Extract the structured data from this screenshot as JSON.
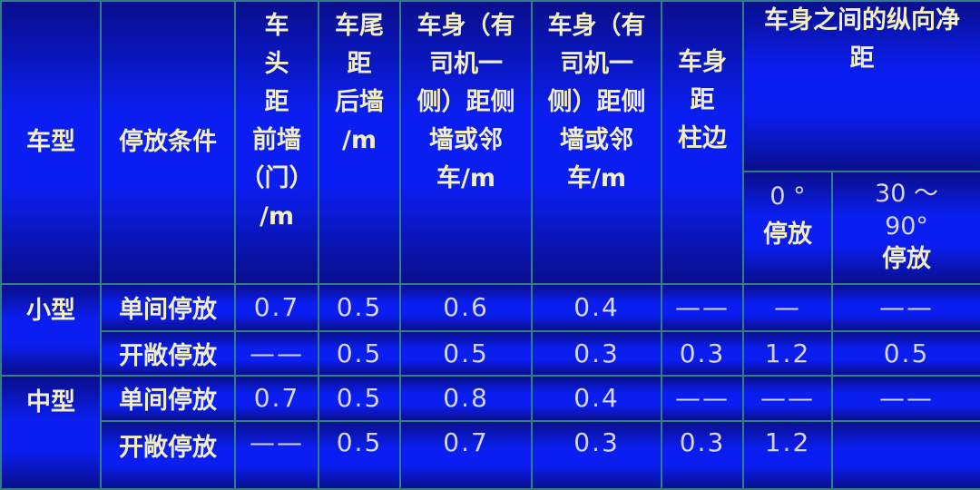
{
  "headers": {
    "car_type": "车型",
    "condition": "停放条件",
    "front": "车\n头\n距\n前墙\n（门）\n/m",
    "rear": "车尾\n距\n后墙\n/m",
    "side_driver": "车身（有\n司机一\n侧）距侧\n墙或邻\n车/m",
    "side_other": "车身（有\n司机一\n侧）距侧\n墙或邻\n车/m",
    "pillar": "车身\n距\n柱边",
    "between": "车身之间的纵向净\n距",
    "angle0_deg": "0 °",
    "angle0_label": "停放",
    "angle30_deg": "30 ～\n90°",
    "angle30_label": "停放"
  },
  "rows": [
    {
      "type": "小型",
      "condition": "单间停放",
      "values": [
        "0.7",
        "0.5",
        "0.6",
        "0.4",
        "——",
        "—",
        "——"
      ]
    },
    {
      "type": "",
      "condition": "开敞停放",
      "values": [
        "——",
        "0.5",
        "0.5",
        "0.3",
        "0.3",
        "1.2",
        "0.5"
      ]
    },
    {
      "type": "中型",
      "condition": "单间停放",
      "values": [
        "0.7",
        "0.5",
        "0.8",
        "0.4",
        "——",
        "——",
        "——"
      ]
    },
    {
      "type": "",
      "condition": "开敞停放",
      "values": [
        "——",
        "0.5",
        "0.7",
        "0.3",
        "0.3",
        "1.2",
        ""
      ]
    }
  ]
}
